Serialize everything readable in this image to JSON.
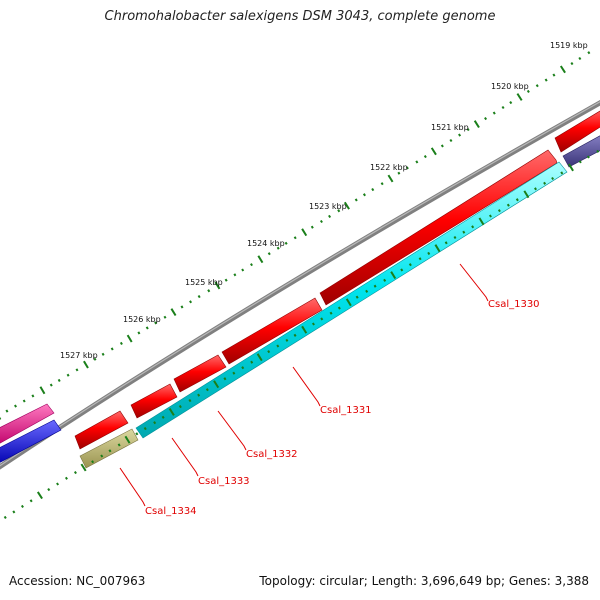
{
  "title": "Chromohalobacter salexigens DSM 3043, complete genome",
  "footer": {
    "accession": "Accession: NC_007963",
    "summary": "Topology: circular; Length: 3,696,649 bp; Genes: 3,388"
  },
  "ruler": {
    "labels": [
      "1519 kbp",
      "1520 kbp",
      "1521 kbp",
      "1522 kbp",
      "1523 kbp",
      "1524 kbp",
      "1525 kbp",
      "1526 kbp",
      "1527 kbp"
    ]
  },
  "genes": [
    {
      "label": "Csal_1330"
    },
    {
      "label": "Csal_1331"
    },
    {
      "label": "Csal_1332"
    },
    {
      "label": "Csal_1333"
    },
    {
      "label": "Csal_1334"
    }
  ],
  "colors": {
    "forward_gene": "#ff0000",
    "cds_gene": "#00e5ee",
    "other_gene": "#b5b06a",
    "magenta_gene": "#ff1a8c",
    "blue_gene": "#0000ff",
    "purple_gene": "#56509e",
    "backbone": "#808080",
    "tick": "#1a7f1a",
    "gene_label": "#e00000"
  }
}
